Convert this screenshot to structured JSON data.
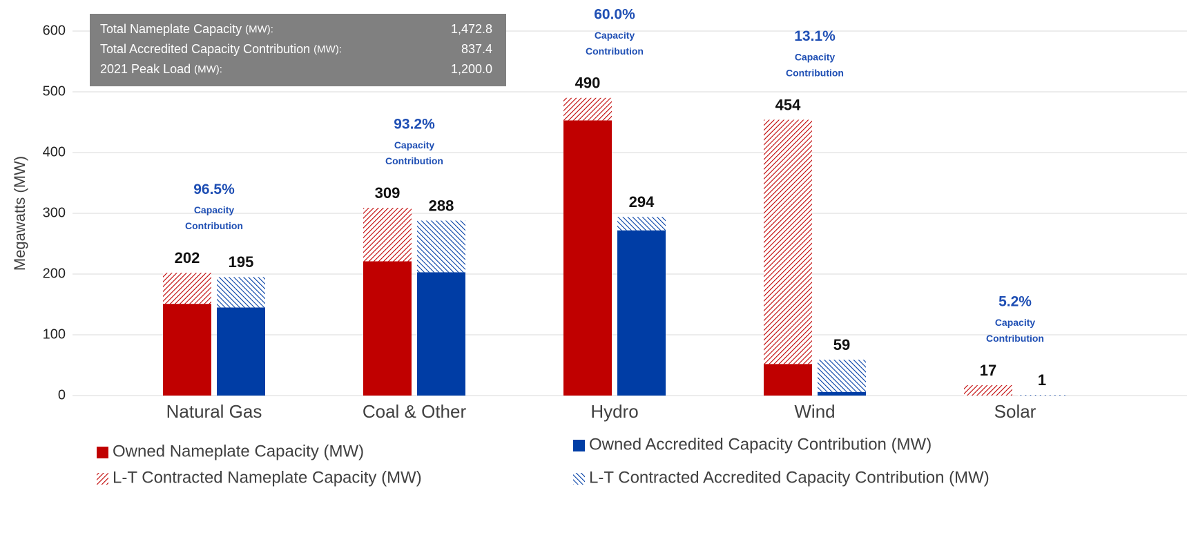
{
  "chart_data": {
    "type": "grouped-stacked-bar",
    "categories": [
      "Natural Gas",
      "Coal & Other",
      "Hydro",
      "Wind",
      "Solar"
    ],
    "y_label": "Megawatts (MW)",
    "ylim": [
      0,
      600
    ],
    "yticks": [
      0,
      100,
      200,
      300,
      400,
      500,
      600
    ],
    "grid": true,
    "series": [
      {
        "name": "Owned Nameplate Capacity (MW)",
        "group": "nameplate",
        "color": "#c00000",
        "hatch": false,
        "values": [
          151,
          221,
          453,
          52,
          0
        ]
      },
      {
        "name": "L-T Contracted Nameplate Capacity (MW)",
        "group": "nameplate",
        "color": "#c00000",
        "hatch": true,
        "values": [
          51,
          88,
          37,
          402,
          17
        ]
      },
      {
        "name": "Owned Accredited Capacity Contribution (MW)",
        "group": "accredited",
        "color": "#003da5",
        "hatch": false,
        "values": [
          145,
          203,
          272,
          6,
          0
        ]
      },
      {
        "name": "L-T Contracted Accredited Capacity Contribution (MW)",
        "group": "accredited",
        "color": "#003da5",
        "hatch": true,
        "values": [
          50,
          85,
          22,
          53,
          1
        ]
      }
    ],
    "nameplate_totals": [
      202,
      309,
      490,
      454,
      17
    ],
    "accredited_totals": [
      195,
      288,
      294,
      59,
      1
    ],
    "contribution_labels": [
      "96.5%",
      "93.2%",
      "60.0%",
      "13.1%",
      "5.2%"
    ],
    "contribution_caption": "Capacity Contribution",
    "summary_box": [
      [
        "Total Nameplate Capacity",
        "(MW):",
        "1,472.8"
      ],
      [
        "Total Accredited Capacity Contribution",
        "(MW):",
        "837.4"
      ],
      [
        "2021 Peak Load",
        "(MW):",
        "1,200.0"
      ]
    ]
  }
}
